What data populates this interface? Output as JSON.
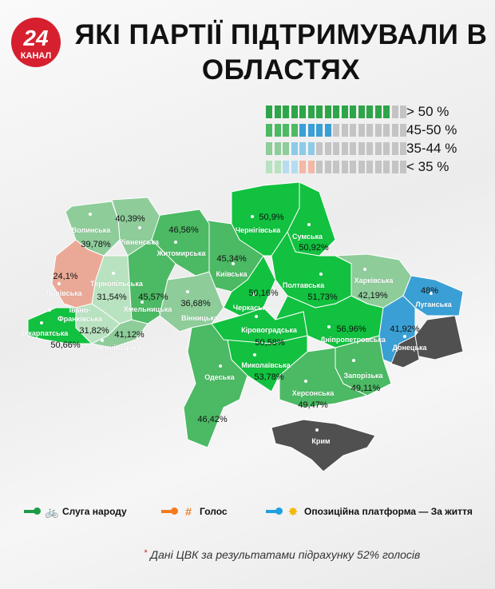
{
  "logo": {
    "number": "24",
    "text": "КАНАЛ"
  },
  "title": "ЯКІ ПАРТІЇ ПІДТРИМУВАЛИ В ОБЛАСТЯХ",
  "colors": {
    "over50": "#11c13f",
    "r45_50": "#4cb964",
    "r35_44": "#8ecc9a",
    "under35": "#b9e2c0",
    "golos": "#eaa997",
    "opzzh": "#3a9fd4",
    "occupied": "#505050",
    "gray": "#c4c4c4",
    "sluha_pin": "#1f9b47",
    "golos_pin": "#f47a20",
    "opzzh_pin": "#1fa0e0"
  },
  "icon_rows": [
    {
      "label": "> 50 %",
      "groups": [
        {
          "count": 15,
          "color": "#2ea548"
        },
        {
          "count": 2,
          "color": "#c4c4c4"
        }
      ]
    },
    {
      "label": "45-50 %",
      "groups": [
        {
          "count": 4,
          "color": "#4cb964"
        },
        {
          "count": 4,
          "color": "#3a9fd4"
        },
        {
          "count": 9,
          "color": "#c4c4c4"
        }
      ]
    },
    {
      "label": "35-44 %",
      "groups": [
        {
          "count": 3,
          "color": "#8ecc9a"
        },
        {
          "count": 3,
          "color": "#8ccbe8"
        },
        {
          "count": 11,
          "color": "#c4c4c4"
        }
      ]
    },
    {
      "label": "< 35 %",
      "groups": [
        {
          "count": 2,
          "color": "#b9e2c0"
        },
        {
          "count": 2,
          "color": "#b5dcef"
        },
        {
          "count": 2,
          "color": "#f3b8a6"
        },
        {
          "count": 11,
          "color": "#c4c4c4"
        }
      ]
    }
  ],
  "regions": [
    {
      "name": "Волинська",
      "value": "39,78%",
      "cat": "r35_44"
    },
    {
      "name": "Рівненська",
      "value": "40,39%",
      "cat": "r35_44"
    },
    {
      "name": "Житомирська",
      "value": "46,56%",
      "cat": "r45_50"
    },
    {
      "name": "Київська",
      "value": "45,34%",
      "cat": "r45_50"
    },
    {
      "name": "Чернігівська",
      "value": "50,9%",
      "cat": "over50"
    },
    {
      "name": "Сумська",
      "value": "50,92%",
      "cat": "over50"
    },
    {
      "name": "Полтавська",
      "value": "51,73%",
      "cat": "over50"
    },
    {
      "name": "Харківська",
      "value": "42,19%",
      "cat": "r35_44"
    },
    {
      "name": "Луганська",
      "value": "48%",
      "cat": "opzzh"
    },
    {
      "name": "Донецька",
      "value": "41,92%",
      "cat": "opzzh"
    },
    {
      "name": "Черкаська",
      "value": "50,16%",
      "cat": "over50"
    },
    {
      "name": "Кіровоградська",
      "value": "50,58%",
      "cat": "over50"
    },
    {
      "name": "Дніпропетровська",
      "value": "56,96%",
      "cat": "over50"
    },
    {
      "name": "Запорізька",
      "value": "49,11%",
      "cat": "r45_50"
    },
    {
      "name": "Херсонська",
      "value": "49,47%",
      "cat": "r45_50"
    },
    {
      "name": "Миколаївська",
      "value": "53,78%",
      "cat": "over50"
    },
    {
      "name": "Одеська",
      "value": "46,42%",
      "cat": "r45_50"
    },
    {
      "name": "Вінницька",
      "value": "36,68%",
      "cat": "r35_44"
    },
    {
      "name": "Хмельницька",
      "value": "45,57%",
      "cat": "r45_50"
    },
    {
      "name": "Тернопільська",
      "value": "31,54%",
      "cat": "under35"
    },
    {
      "name": "Львівська",
      "value": "24,1%",
      "cat": "golos"
    },
    {
      "name": "Івано-Франківська",
      "value": "31,82%",
      "cat": "under35"
    },
    {
      "name": "Закарпатська",
      "value": "50,66%",
      "cat": "over50"
    },
    {
      "name": "Чернівецька",
      "value": "41,12%",
      "cat": "r35_44"
    },
    {
      "name": "Крим",
      "value": "",
      "cat": "occupied"
    }
  ],
  "legend": [
    {
      "label": "Слуга народу",
      "icon": "bicycle-rider-icon",
      "color": "#1f9b47"
    },
    {
      "label": "Голос",
      "icon": "golos-logo-icon",
      "color": "#f47a20"
    },
    {
      "label": "Опозиційна платформа — За життя",
      "icon": "opzzh-logo-icon",
      "color": "#1fa0e0"
    }
  ],
  "note": "Дані ЦВК за результатами підрахунку 52% голосів",
  "note_mark": "*"
}
